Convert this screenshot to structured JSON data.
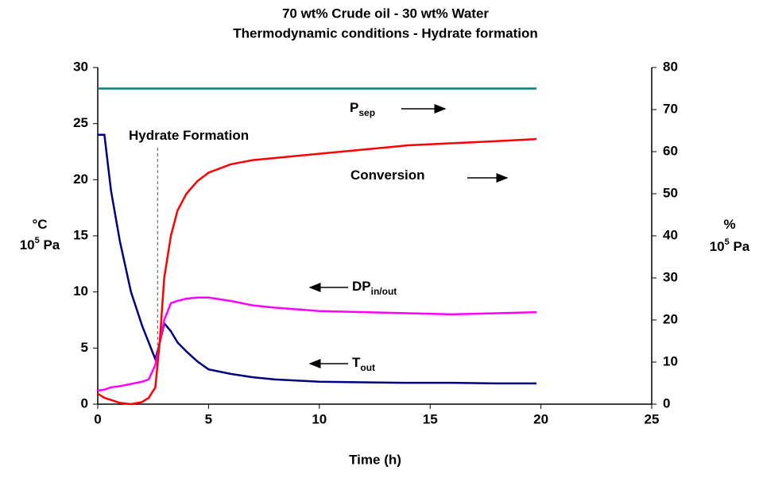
{
  "chart_data": {
    "type": "line",
    "title": [
      "70 wt% Crude oil  - 30 wt% Water",
      "Thermodynamic conditions - Hydrate formation"
    ],
    "xlabel": "Time (h)",
    "ylabel": [
      {
        "text": "°C"
      },
      {
        "text": "10",
        "sup": "5",
        "rest": " Pa"
      }
    ],
    "y2label": [
      {
        "text": "%"
      },
      {
        "text": "10",
        "sup": "5",
        "rest": " Pa"
      }
    ],
    "x": [
      0,
      0.3,
      0.6,
      1,
      1.5,
      2,
      2.3,
      2.6,
      2.8,
      3,
      3.3,
      3.6,
      4,
      4.5,
      5,
      6,
      7,
      8,
      10,
      12,
      14,
      16,
      18,
      19.8
    ],
    "series": [
      {
        "name": "T_out",
        "color": "#000080",
        "values": [
          24,
          24,
          19,
          14.5,
          10,
          7,
          5.5,
          4,
          5.5,
          7.2,
          6.5,
          5.5,
          4.7,
          3.8,
          3.1,
          2.7,
          2.4,
          2.2,
          2.0,
          1.95,
          1.9,
          1.9,
          1.85,
          1.85
        ]
      },
      {
        "name": "DP in/out",
        "color": "#ff00ff",
        "values": [
          1.2,
          1.3,
          1.5,
          1.6,
          1.8,
          2.0,
          2.2,
          3.5,
          5.5,
          7.5,
          9.0,
          9.2,
          9.4,
          9.5,
          9.5,
          9.2,
          8.8,
          8.6,
          8.3,
          8.2,
          8.1,
          8.0,
          8.1,
          8.2
        ]
      },
      {
        "name": "Conversion",
        "color": "#ff0000",
        "axis": "y2",
        "values": [
          2.5,
          1.5,
          1,
          0.3,
          0,
          0.5,
          1.5,
          4,
          15,
          30,
          40,
          46,
          50,
          53,
          55,
          57,
          58,
          58.5,
          59.5,
          60.5,
          61.5,
          62,
          62.5,
          63
        ]
      },
      {
        "name": "P_sep",
        "color": "#008080",
        "axis": "y2",
        "values": [
          75,
          75,
          75,
          75,
          75,
          75,
          75,
          75,
          75,
          75,
          75,
          75,
          75,
          75,
          75,
          75,
          75,
          75,
          75,
          75,
          75,
          75,
          75,
          75
        ]
      }
    ],
    "annotations": [
      {
        "text": "P",
        "sub": "sep"
      },
      {
        "text": "Hydrate Formation",
        "x": 2.7
      },
      {
        "text": "Conversion"
      },
      {
        "text": "DP",
        "sub": "in/out"
      },
      {
        "text": "T",
        "sub": "out"
      }
    ],
    "xlim": [
      0,
      25
    ],
    "xticks": [
      0,
      5,
      10,
      15,
      20,
      25
    ],
    "ylim": [
      0,
      30
    ],
    "yticks": [
      0,
      5,
      10,
      15,
      20,
      25,
      30
    ],
    "y2lim": [
      0,
      80
    ],
    "y2ticks": [
      0,
      10,
      20,
      30,
      40,
      50,
      60,
      70,
      80
    ]
  }
}
